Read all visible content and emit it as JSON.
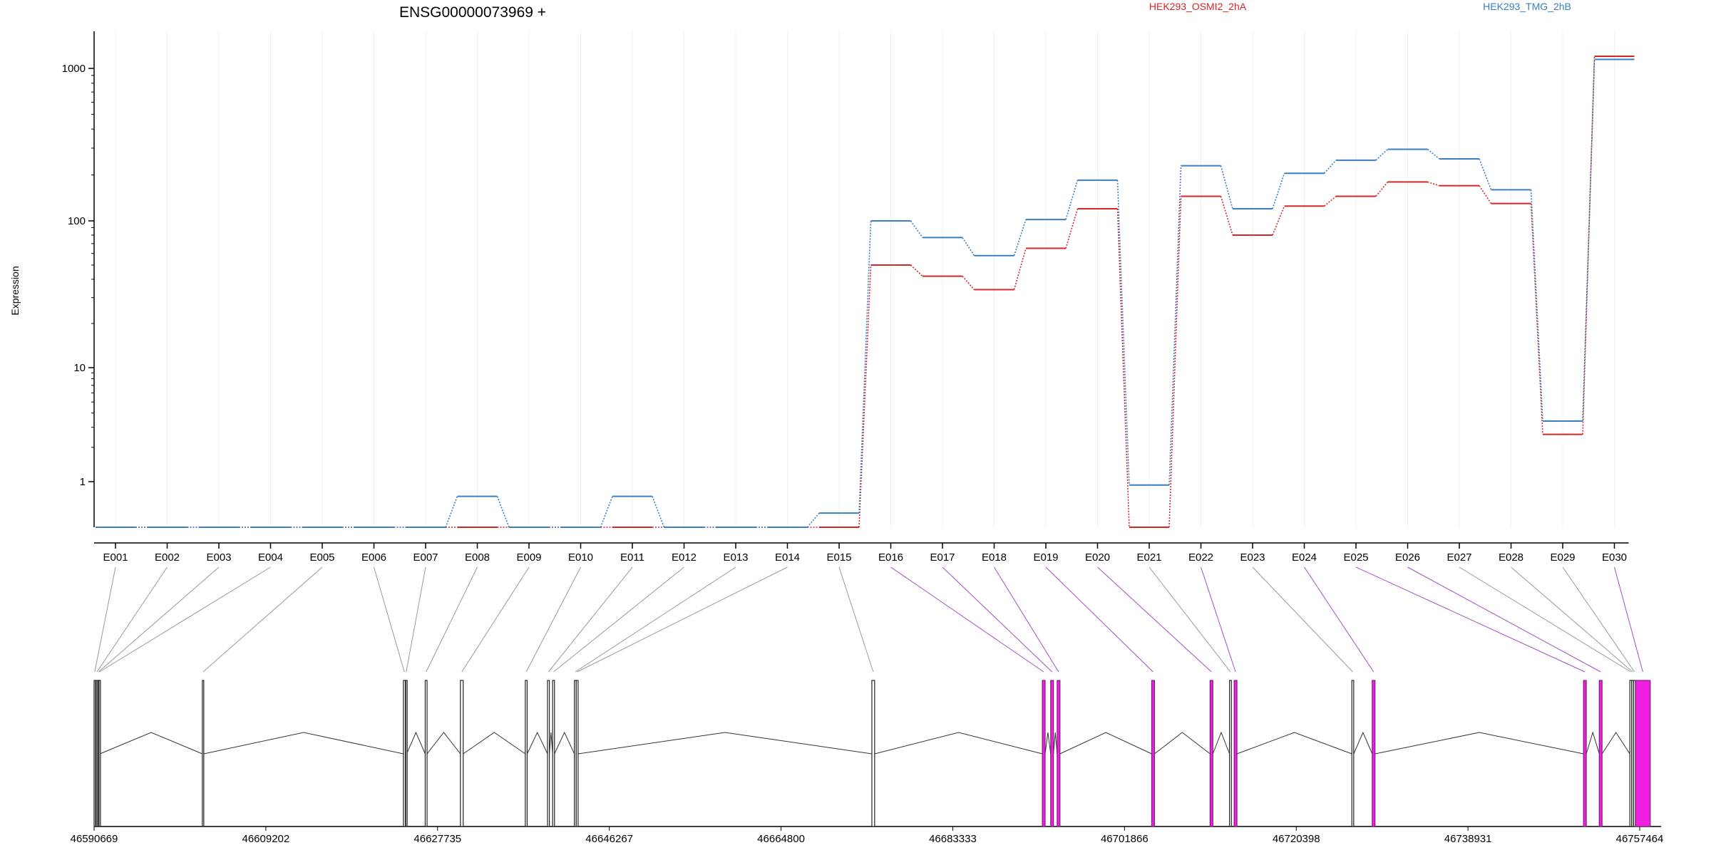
{
  "chart_data": {
    "type": "line",
    "title": "ENSG00000073969 +",
    "ylabel": "Expression",
    "xlabel": "",
    "yscale": "log",
    "ylim": [
      0.5,
      1700
    ],
    "yticks": [
      "1",
      "10",
      "100",
      "1000"
    ],
    "grid": "vertical",
    "legend": "top-right",
    "categories": [
      "E001",
      "E002",
      "E003",
      "E004",
      "E005",
      "E006",
      "E007",
      "E008",
      "E009",
      "E010",
      "E011",
      "E012",
      "E013",
      "E014",
      "E015",
      "E016",
      "E017",
      "E018",
      "E019",
      "E020",
      "E021",
      "E022",
      "E023",
      "E024",
      "E025",
      "E026",
      "E027",
      "E028",
      "E029",
      "E030"
    ],
    "series": [
      {
        "name": "HEK293_OSMI2_2hA",
        "color": "#d62728",
        "values": [
          0.5,
          0.5,
          0.5,
          0.5,
          0.5,
          0.5,
          0.5,
          0.5,
          0.5,
          0.5,
          0.5,
          0.5,
          0.5,
          0.5,
          0.5,
          50,
          42,
          34,
          65,
          120,
          0.5,
          145,
          80,
          125,
          145,
          180,
          170,
          130,
          2.6,
          1350
        ]
      },
      {
        "name": "HEK293_TMG_2hB",
        "color": "#3a7fc1",
        "values": [
          0.5,
          0.5,
          0.5,
          0.5,
          0.5,
          0.5,
          0.5,
          0.8,
          0.5,
          0.5,
          0.8,
          0.5,
          0.5,
          0.5,
          0.62,
          100,
          77,
          58,
          102,
          185,
          0.95,
          230,
          120,
          205,
          250,
          295,
          255,
          160,
          3.4,
          1250
        ]
      }
    ],
    "gene_model": {
      "axis_ticks": [
        "46590669",
        "46609202",
        "46627735",
        "46646267",
        "46664800",
        "46683333",
        "46701866",
        "46720398",
        "46738931",
        "46757464"
      ],
      "exons": [
        {
          "id": "E001",
          "start": 46590669,
          "end": 46590800,
          "highlight": false
        },
        {
          "id": "E002",
          "start": 46590900,
          "end": 46591050,
          "highlight": false
        },
        {
          "id": "E003",
          "start": 46591100,
          "end": 46591200,
          "highlight": false
        },
        {
          "id": "E004",
          "start": 46591200,
          "end": 46591300,
          "highlight": false
        },
        {
          "id": "E005",
          "start": 46602350,
          "end": 46602500,
          "highlight": false
        },
        {
          "id": "E006",
          "start": 46624050,
          "end": 46624250,
          "highlight": false
        },
        {
          "id": "E007",
          "start": 46624300,
          "end": 46624400,
          "highlight": false
        },
        {
          "id": "E008",
          "start": 46626400,
          "end": 46626600,
          "highlight": false
        },
        {
          "id": "E009",
          "start": 46630200,
          "end": 46630500,
          "highlight": false
        },
        {
          "id": "E010",
          "start": 46637200,
          "end": 46637400,
          "highlight": false
        },
        {
          "id": "E011",
          "start": 46639600,
          "end": 46639800,
          "highlight": false
        },
        {
          "id": "E012",
          "start": 46640150,
          "end": 46640350,
          "highlight": false
        },
        {
          "id": "E013",
          "start": 46642500,
          "end": 46642700,
          "highlight": false
        },
        {
          "id": "E014",
          "start": 46642700,
          "end": 46642900,
          "highlight": false
        },
        {
          "id": "E015",
          "start": 46674600,
          "end": 46674900,
          "highlight": false
        },
        {
          "id": "E016",
          "start": 46693000,
          "end": 46693300,
          "highlight": true
        },
        {
          "id": "E017",
          "start": 46693900,
          "end": 46694200,
          "highlight": true
        },
        {
          "id": "E018",
          "start": 46694600,
          "end": 46694900,
          "highlight": true
        },
        {
          "id": "E019",
          "start": 46704800,
          "end": 46705100,
          "highlight": true
        },
        {
          "id": "E020",
          "start": 46711100,
          "end": 46711400,
          "highlight": true
        },
        {
          "id": "E021",
          "start": 46713200,
          "end": 46713400,
          "highlight": false
        },
        {
          "id": "E022",
          "start": 46713700,
          "end": 46714000,
          "highlight": true
        },
        {
          "id": "E023",
          "start": 46726400,
          "end": 46726600,
          "highlight": false
        },
        {
          "id": "E024",
          "start": 46728600,
          "end": 46728900,
          "highlight": true
        },
        {
          "id": "E025",
          "start": 46751400,
          "end": 46751700,
          "highlight": true
        },
        {
          "id": "E026",
          "start": 46753100,
          "end": 46753400,
          "highlight": true
        },
        {
          "id": "E027",
          "start": 46756400,
          "end": 46756600,
          "highlight": false
        },
        {
          "id": "E028",
          "start": 46756600,
          "end": 46756800,
          "highlight": false
        },
        {
          "id": "E029",
          "start": 46756800,
          "end": 46757000,
          "highlight": false
        },
        {
          "id": "E030",
          "start": 46757000,
          "end": 46758600,
          "highlight": true
        }
      ]
    }
  }
}
